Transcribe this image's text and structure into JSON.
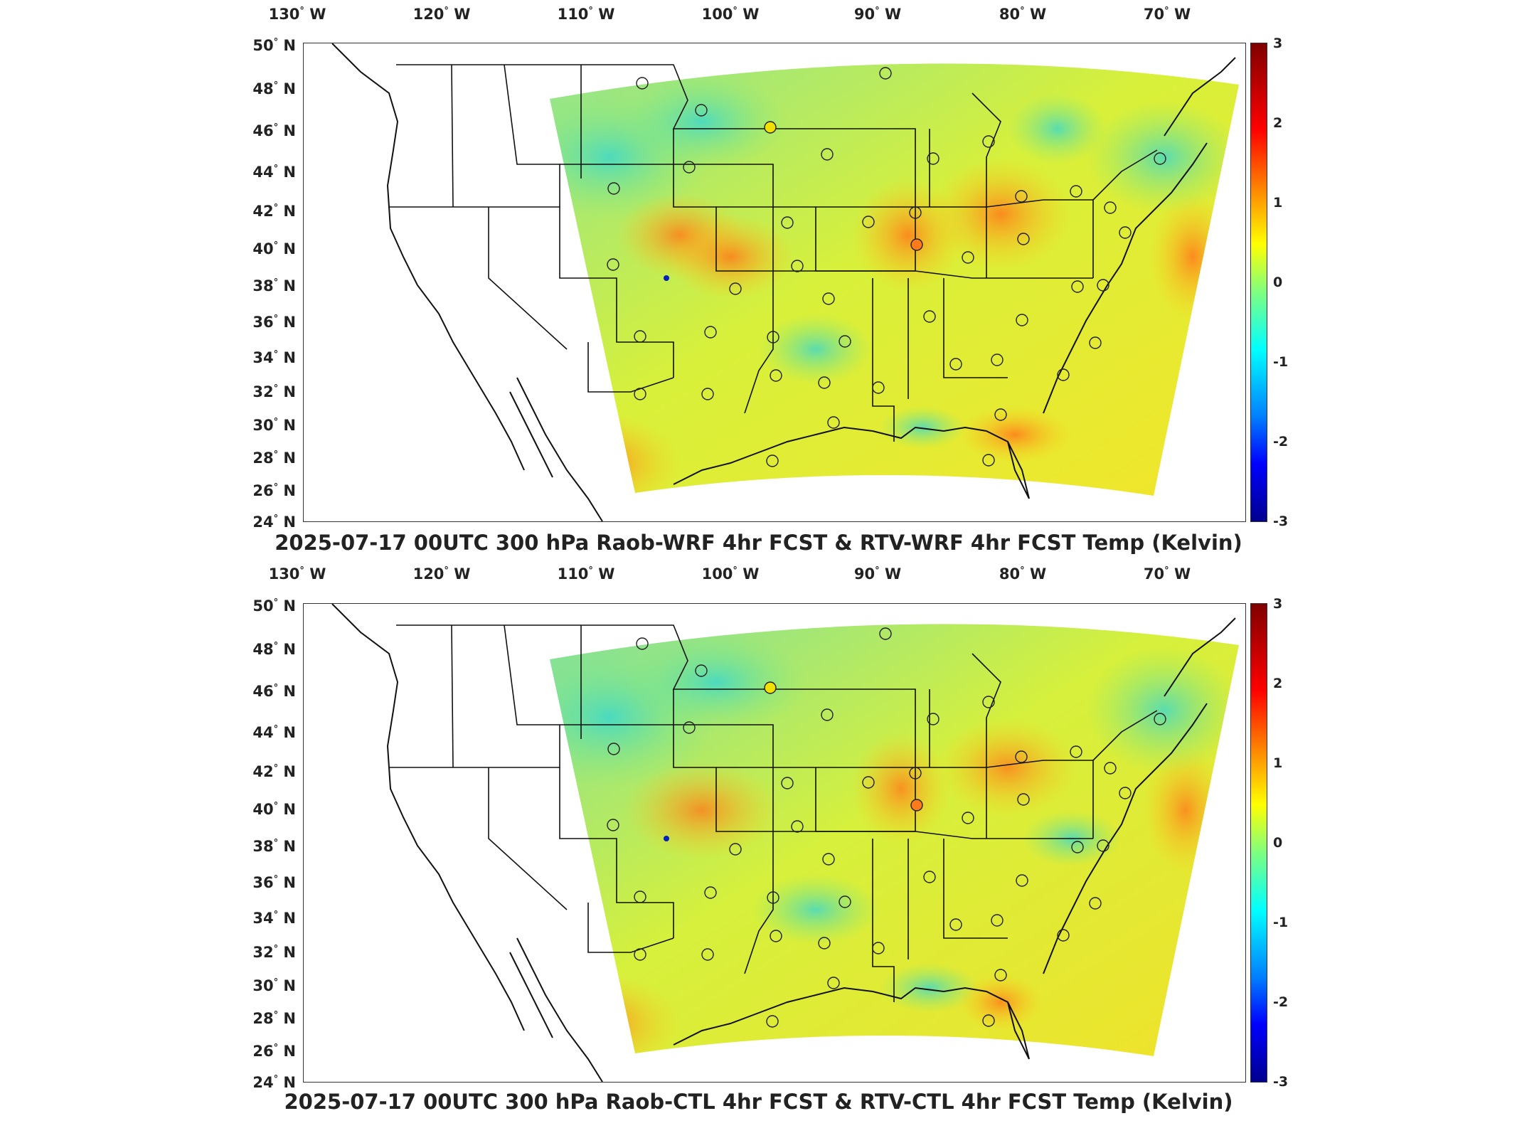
{
  "panels": [
    {
      "title": "2025-07-17 00UTC 300 hPa Raob-WRF 4hr FCST & RTV-WRF 4hr FCST Temp (Kelvin)",
      "lon_labels": [
        "130",
        "120",
        "110",
        "100",
        "90",
        "80",
        "70"
      ],
      "lat_labels": [
        "50",
        "48",
        "46",
        "44",
        "42",
        "40",
        "38",
        "36",
        "34",
        "32",
        "30",
        "28",
        "26",
        "24"
      ],
      "colorbar_ticks": [
        "3",
        "2",
        "1",
        "0",
        "-1",
        "-2",
        "-3"
      ]
    },
    {
      "title": "2025-07-17 00UTC 300 hPa Raob-CTL 4hr FCST & RTV-CTL 4hr FCST Temp (Kelvin)",
      "lon_labels": [
        "130",
        "120",
        "110",
        "100",
        "90",
        "80",
        "70"
      ],
      "lat_labels": [
        "50",
        "48",
        "46",
        "44",
        "42",
        "40",
        "38",
        "36",
        "34",
        "32",
        "30",
        "28",
        "26",
        "24"
      ],
      "colorbar_ticks": [
        "3",
        "2",
        "1",
        "0",
        "-1",
        "-2",
        "-3"
      ]
    }
  ],
  "units": {
    "west": "W",
    "north": "N"
  },
  "colormap": [
    "#00008f",
    "#0000ff",
    "#00ffff",
    "#7fff7f",
    "#ffff00",
    "#ff0000",
    "#800000"
  ]
}
